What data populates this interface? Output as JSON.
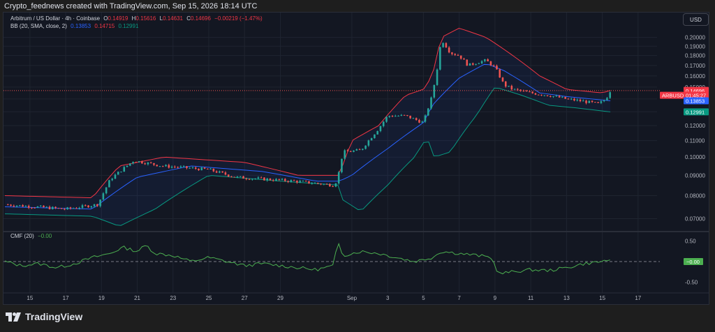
{
  "header": {
    "attribution": "Crypto_feednews created with TradingView.com, Sep 15, 2026 18:14 UTC"
  },
  "legend": {
    "symbol": "Arbitrum / US Dollar · 4h · Coinbase",
    "o_label": "O",
    "o_value": "0.14919",
    "h_label": "H",
    "h_value": "0.15616",
    "l_label": "L",
    "l_value": "0.14631",
    "c_label": "C",
    "c_value": "0.14696",
    "change": "−0.00219 (−1.47%)",
    "bb_label": "BB (20, SMA, close, 2)",
    "bb_basis": "0.13853",
    "bb_upper": "0.14715",
    "bb_lower": "0.12991",
    "cmf_label": "CMF (20)",
    "cmf_value": "−0.00"
  },
  "currency_button": "USD",
  "footer": {
    "brand": "TradingView"
  },
  "colors": {
    "background": "#131722",
    "up": "#26a69a",
    "down": "#ef5350",
    "bb_upper": "#f23645",
    "bb_basis": "#2962ff",
    "bb_lower": "#089981",
    "cmf": "#4caf50",
    "grid": "#1f2430",
    "axis_text": "#b2b5be"
  },
  "chart_data": [
    {
      "type": "candlestick",
      "symbol": "ARBUSD",
      "interval": "4h",
      "y_scale": "log",
      "y_ticks": [
        "0.20000",
        "0.19000",
        "0.18000",
        "0.17000",
        "0.16000",
        "0.15000",
        "0.14000",
        "0.13000",
        "0.12000",
        "0.11000",
        "0.10000",
        "0.09000",
        "0.08000",
        "0.07000"
      ],
      "x_ticks": [
        "15",
        "17",
        "19",
        "21",
        "23",
        "25",
        "27",
        "29",
        "Sep",
        "3",
        "5",
        "7",
        "9",
        "11",
        "13",
        "15",
        "17"
      ],
      "x_tick_days": [
        -17,
        -15,
        -13,
        -11,
        -9,
        -7,
        -5,
        -3,
        1,
        3,
        5,
        7,
        9,
        11,
        13,
        15,
        17
      ],
      "x_range_days": [
        -18.4,
        18.1
      ],
      "price_labels": [
        {
          "text": "0.14715",
          "value": 0.14715,
          "color": "#f23645"
        },
        {
          "text": "ARBUSD",
          "value": 0.143,
          "color": "#f23645"
        },
        {
          "text": "0.14696",
          "value": 0.14696,
          "color": "#f23645"
        },
        {
          "text": "01:45:27",
          "value": 0.1432,
          "color": "#f23645"
        },
        {
          "text": "0.13853",
          "value": 0.13853,
          "color": "#2962ff"
        },
        {
          "text": "0.12991",
          "value": 0.12991,
          "color": "#089981"
        }
      ],
      "last_price": 0.14696,
      "key_points": [
        {
          "day": -18.4,
          "close": 0.076
        },
        {
          "day": -15.0,
          "close": 0.074
        },
        {
          "day": -13.2,
          "close": 0.076
        },
        {
          "day": -12.5,
          "close": 0.088
        },
        {
          "day": -11.2,
          "close": 0.098
        },
        {
          "day": -9.6,
          "close": 0.095
        },
        {
          "day": -7.0,
          "close": 0.093
        },
        {
          "day": -5.5,
          "close": 0.089
        },
        {
          "day": -2.2,
          "close": 0.087
        },
        {
          "day": 0.0,
          "close": 0.085
        },
        {
          "day": 0.2,
          "close": 0.088
        },
        {
          "day": 0.5,
          "close": 0.103
        },
        {
          "day": 1.5,
          "close": 0.104
        },
        {
          "day": 2.5,
          "close": 0.118
        },
        {
          "day": 3.0,
          "close": 0.127
        },
        {
          "day": 4.0,
          "close": 0.127
        },
        {
          "day": 5.0,
          "close": 0.122
        },
        {
          "day": 5.5,
          "close": 0.143
        },
        {
          "day": 5.8,
          "close": 0.17
        },
        {
          "day": 6.0,
          "close": 0.198
        },
        {
          "day": 6.5,
          "close": 0.183
        },
        {
          "day": 7.0,
          "close": 0.18
        },
        {
          "day": 7.5,
          "close": 0.17
        },
        {
          "day": 8.0,
          "close": 0.173
        },
        {
          "day": 8.5,
          "close": 0.175
        },
        {
          "day": 9.0,
          "close": 0.168
        },
        {
          "day": 9.5,
          "close": 0.152
        },
        {
          "day": 10.0,
          "close": 0.148
        },
        {
          "day": 11.0,
          "close": 0.145
        },
        {
          "day": 12.0,
          "close": 0.143
        },
        {
          "day": 13.0,
          "close": 0.14
        },
        {
          "day": 14.0,
          "close": 0.138
        },
        {
          "day": 14.8,
          "close": 0.136
        },
        {
          "day": 15.2,
          "close": 0.14
        },
        {
          "day": 15.45,
          "close": 0.147
        }
      ],
      "bb_upper_points": [
        {
          "day": -18.4,
          "value": 0.08
        },
        {
          "day": -13.5,
          "value": 0.079
        },
        {
          "day": -12.0,
          "value": 0.095
        },
        {
          "day": -9.5,
          "value": 0.1
        },
        {
          "day": -5.0,
          "value": 0.097
        },
        {
          "day": -2.0,
          "value": 0.09
        },
        {
          "day": 0.3,
          "value": 0.09
        },
        {
          "day": 1.0,
          "value": 0.11
        },
        {
          "day": 2.5,
          "value": 0.12
        },
        {
          "day": 4.0,
          "value": 0.143
        },
        {
          "day": 5.0,
          "value": 0.148
        },
        {
          "day": 5.5,
          "value": 0.16
        },
        {
          "day": 6.0,
          "value": 0.2
        },
        {
          "day": 7.0,
          "value": 0.211
        },
        {
          "day": 8.5,
          "value": 0.2
        },
        {
          "day": 10.0,
          "value": 0.18
        },
        {
          "day": 11.5,
          "value": 0.16
        },
        {
          "day": 13.0,
          "value": 0.148
        },
        {
          "day": 15.0,
          "value": 0.145
        },
        {
          "day": 15.45,
          "value": 0.14715
        }
      ],
      "bb_basis_points": [
        {
          "day": -18.4,
          "value": 0.075
        },
        {
          "day": -13.5,
          "value": 0.074
        },
        {
          "day": -11.0,
          "value": 0.089
        },
        {
          "day": -8.0,
          "value": 0.095
        },
        {
          "day": -4.0,
          "value": 0.092
        },
        {
          "day": -1.0,
          "value": 0.087
        },
        {
          "day": 0.3,
          "value": 0.087
        },
        {
          "day": 1.0,
          "value": 0.09
        },
        {
          "day": 3.0,
          "value": 0.105
        },
        {
          "day": 5.0,
          "value": 0.122
        },
        {
          "day": 5.5,
          "value": 0.135
        },
        {
          "day": 7.0,
          "value": 0.158
        },
        {
          "day": 8.5,
          "value": 0.172
        },
        {
          "day": 9.5,
          "value": 0.165
        },
        {
          "day": 11.5,
          "value": 0.145
        },
        {
          "day": 13.0,
          "value": 0.142
        },
        {
          "day": 15.45,
          "value": 0.13853
        }
      ],
      "bb_lower_points": [
        {
          "day": -18.4,
          "value": 0.072
        },
        {
          "day": -13.5,
          "value": 0.071
        },
        {
          "day": -12.0,
          "value": 0.067
        },
        {
          "day": -10.0,
          "value": 0.074
        },
        {
          "day": -7.0,
          "value": 0.09
        },
        {
          "day": -3.0,
          "value": 0.087
        },
        {
          "day": 0.3,
          "value": 0.085
        },
        {
          "day": 0.5,
          "value": 0.078
        },
        {
          "day": 1.5,
          "value": 0.073
        },
        {
          "day": 3.0,
          "value": 0.085
        },
        {
          "day": 4.5,
          "value": 0.1
        },
        {
          "day": 5.2,
          "value": 0.112
        },
        {
          "day": 5.6,
          "value": 0.1
        },
        {
          "day": 6.5,
          "value": 0.103
        },
        {
          "day": 8.0,
          "value": 0.128
        },
        {
          "day": 9.0,
          "value": 0.15
        },
        {
          "day": 10.5,
          "value": 0.143
        },
        {
          "day": 12.0,
          "value": 0.135
        },
        {
          "day": 13.5,
          "value": 0.133
        },
        {
          "day": 15.45,
          "value": 0.12991
        }
      ]
    },
    {
      "type": "line",
      "series": [
        {
          "name": "CMF (20)",
          "values_by_day": [
            {
              "day": -18.4,
              "value": 0.0
            },
            {
              "day": -17.5,
              "value": -0.1
            },
            {
              "day": -16.5,
              "value": -0.05
            },
            {
              "day": -15.5,
              "value": -0.15
            },
            {
              "day": -14.5,
              "value": -0.05
            },
            {
              "day": -13.5,
              "value": 0.1
            },
            {
              "day": -12.5,
              "value": 0.2
            },
            {
              "day": -11.8,
              "value": 0.35
            },
            {
              "day": -11.0,
              "value": 0.25
            },
            {
              "day": -10.5,
              "value": 0.4
            },
            {
              "day": -10.0,
              "value": 0.2
            },
            {
              "day": -9.0,
              "value": 0.15
            },
            {
              "day": -8.0,
              "value": 0.0
            },
            {
              "day": -7.0,
              "value": 0.1
            },
            {
              "day": -6.0,
              "value": 0.0
            },
            {
              "day": -5.0,
              "value": -0.1
            },
            {
              "day": -4.0,
              "value": -0.05
            },
            {
              "day": -3.0,
              "value": -0.1
            },
            {
              "day": -2.0,
              "value": -0.15
            },
            {
              "day": -1.0,
              "value": -0.2
            },
            {
              "day": 0.0,
              "value": -0.1
            },
            {
              "day": 0.2,
              "value": 0.5
            },
            {
              "day": 0.5,
              "value": 0.15
            },
            {
              "day": 1.5,
              "value": 0.25
            },
            {
              "day": 2.5,
              "value": 0.2
            },
            {
              "day": 3.5,
              "value": 0.1
            },
            {
              "day": 4.5,
              "value": 0.0
            },
            {
              "day": 5.5,
              "value": 0.1
            },
            {
              "day": 6.0,
              "value": 0.25
            },
            {
              "day": 7.0,
              "value": 0.2
            },
            {
              "day": 8.0,
              "value": 0.15
            },
            {
              "day": 8.8,
              "value": 0.1
            },
            {
              "day": 9.2,
              "value": -0.3
            },
            {
              "day": 10.0,
              "value": -0.25
            },
            {
              "day": 11.0,
              "value": -0.2
            },
            {
              "day": 12.0,
              "value": -0.22
            },
            {
              "day": 13.0,
              "value": -0.15
            },
            {
              "day": 14.0,
              "value": -0.05
            },
            {
              "day": 15.0,
              "value": 0.0
            },
            {
              "day": 15.3,
              "value": 0.05
            },
            {
              "day": 15.45,
              "value": 0.0
            }
          ]
        }
      ],
      "y_ticks": [
        "0.50",
        "0.00",
        "-0.50"
      ],
      "y_range": [
        -0.7,
        0.7
      ],
      "current_value_label": "−0.00"
    }
  ]
}
